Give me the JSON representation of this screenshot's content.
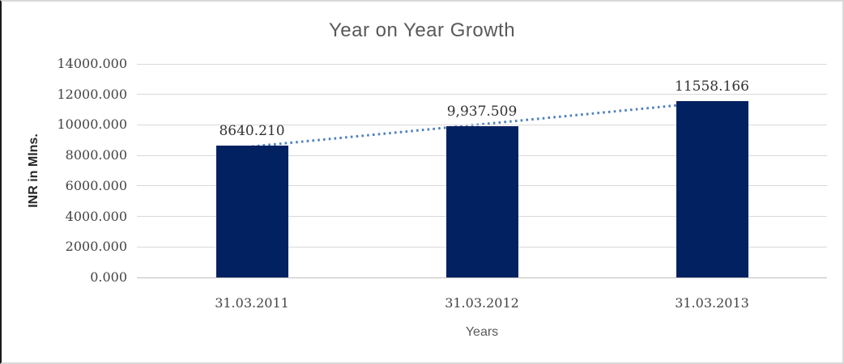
{
  "chart_data": {
    "type": "bar",
    "title": "Year on Year Growth",
    "categories": [
      "31.03.2011",
      "31.03.2012",
      "31.03.2013"
    ],
    "values": [
      8640.21,
      9937.509,
      11558.166
    ],
    "data_labels": [
      "8640.210",
      "9,937.509",
      "11558.166"
    ],
    "xlabel": "Years",
    "ylabel": "INR in Mlns.",
    "ylim": [
      0,
      14000
    ],
    "ytick_step": 2000,
    "yticks": [
      {
        "value": 14000,
        "label": "14000.000"
      },
      {
        "value": 12000,
        "label": "12000.000"
      },
      {
        "value": 10000,
        "label": "10000.000"
      },
      {
        "value": 8000,
        "label": "8000.000"
      },
      {
        "value": 6000,
        "label": "6000.000"
      },
      {
        "value": 4000,
        "label": "4000.000"
      },
      {
        "value": 2000,
        "label": "2000.000"
      },
      {
        "value": 0,
        "label": "0.000"
      }
    ],
    "grid": true,
    "legend": false,
    "trendline": {
      "type": "linear",
      "style": "dotted"
    },
    "colors": {
      "bar": "#022161",
      "trendline": "#4F81BD",
      "gridline": "#D9D9D9",
      "axis_line": "#BFBFBF",
      "title": "#595959",
      "axis_title": "#595959",
      "y_axis_title": "#262626",
      "tick_label": "#444444",
      "data_label": "#333333",
      "frame_border": "#D9D9D9",
      "left_edge": "#1A1A1A"
    }
  }
}
